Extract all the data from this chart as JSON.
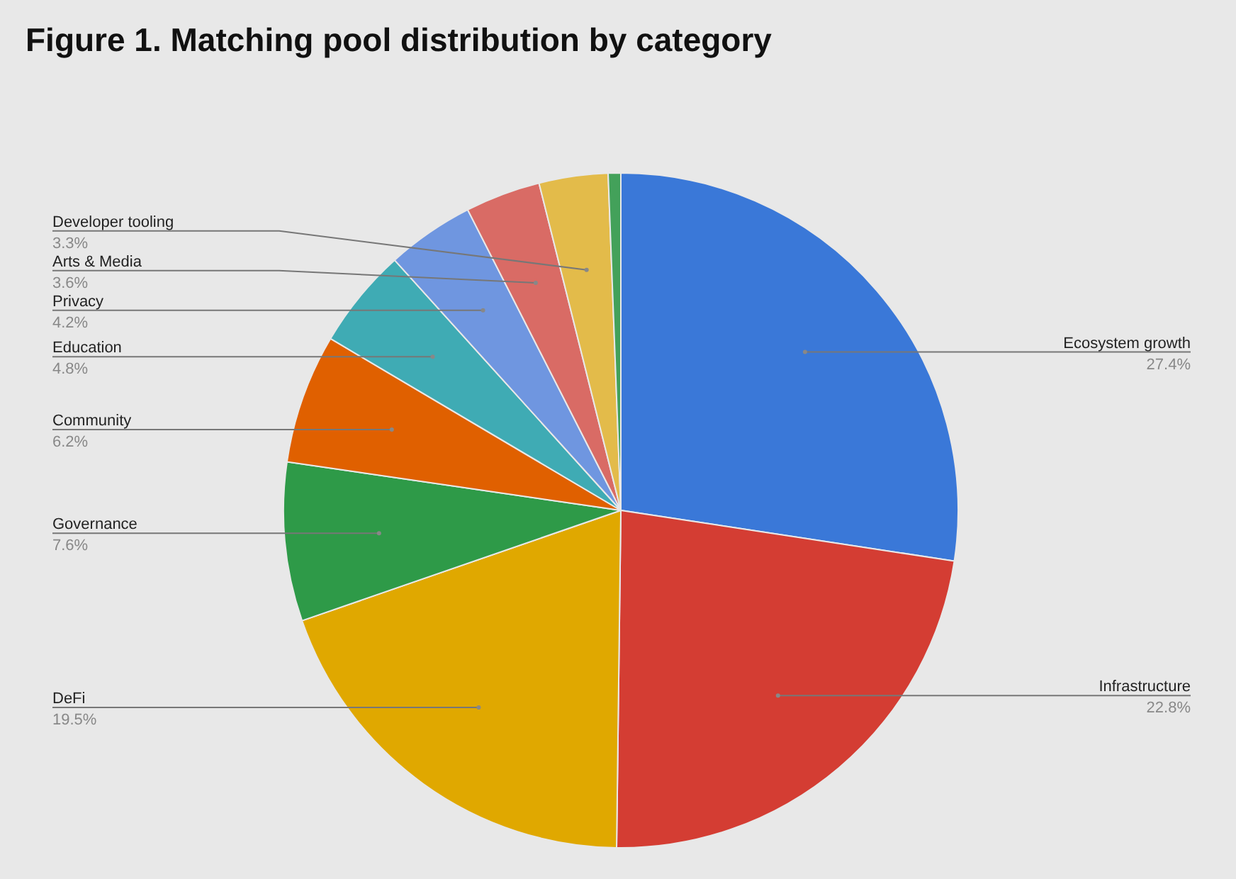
{
  "chart_data": {
    "type": "pie",
    "title": "Figure 1. Matching pool distribution by category",
    "categories": [
      "Ecosystem growth",
      "Infrastructure",
      "DeFi",
      "Governance",
      "Community",
      "Education",
      "Privacy",
      "Arts & Media",
      "Developer tooling",
      null
    ],
    "values": [
      27.4,
      22.8,
      19.5,
      7.6,
      6.2,
      4.8,
      4.2,
      3.6,
      3.3,
      0.6
    ],
    "value_labels": [
      "27.4%",
      "22.8%",
      "19.5%",
      "7.6%",
      "6.2%",
      "4.8%",
      "4.2%",
      "3.6%",
      "3.3%",
      null
    ],
    "colors": [
      "#3a78d8",
      "#d43d33",
      "#e0a800",
      "#2e9a48",
      "#e06000",
      "#3fabb4",
      "#6f96e0",
      "#d96b65",
      "#e3bb4a",
      "#43a15a"
    ],
    "legend": false
  }
}
